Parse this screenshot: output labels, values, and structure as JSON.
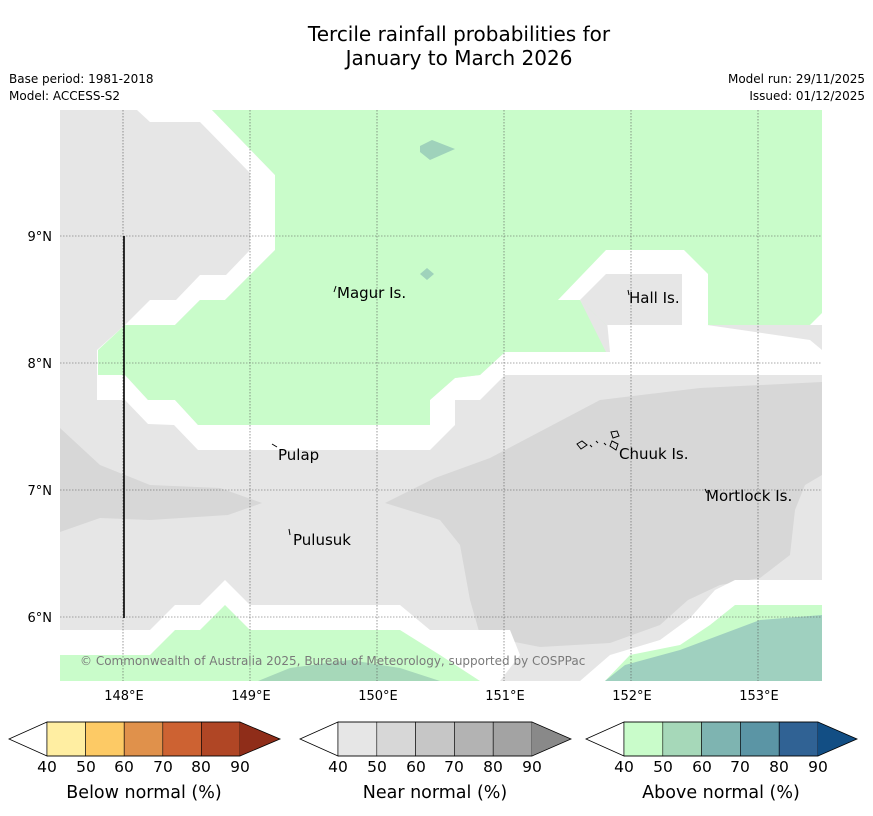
{
  "title": {
    "line1": "Tercile rainfall probabilities for",
    "line2": "January to March 2026"
  },
  "base_period": "Base period: 1981-2018",
  "model": "Model: ACCESS-S2",
  "model_run": "Model run: 29/11/2025",
  "issued": "Issued: 01/12/2025",
  "map": {
    "longitude_labels": [
      "148°E",
      "149°E",
      "150°E",
      "151°E",
      "152°E",
      "153°E"
    ],
    "latitude_labels": [
      "9°N",
      "8°N",
      "7°N",
      "6°N"
    ],
    "places": {
      "magur": "Magur Is.",
      "hall": "Hall Is.",
      "pulap": "Pulap",
      "chuuk": "Chuuk Is.",
      "mortlock": "Mortlock Is.",
      "pulusuk": "Pulusuk"
    },
    "copyright": "© Commonwealth of Australia 2025, Bureau of Meteorology, supported by COSPPac"
  },
  "legends": {
    "below": {
      "title": "Below normal (%)",
      "ticks": [
        "40",
        "50",
        "60",
        "70",
        "80",
        "90"
      ],
      "colors": [
        "#ffeea2",
        "#fdca65",
        "#e0914b",
        "#cd6232",
        "#b04625",
        "#8f2d19"
      ]
    },
    "near": {
      "title": "Near normal (%)",
      "ticks": [
        "40",
        "50",
        "60",
        "70",
        "80",
        "90"
      ],
      "colors": [
        "#e6e6e6",
        "#d7d7d7",
        "#c6c6c6",
        "#b3b3b3",
        "#a3a3a3",
        "#898989"
      ]
    },
    "above": {
      "title": "Above normal (%)",
      "ticks": [
        "40",
        "50",
        "60",
        "70",
        "80",
        "90"
      ],
      "colors": [
        "#c9fcca",
        "#a6d8b9",
        "#7eb4b1",
        "#5b95a5",
        "#306294",
        "#124e84"
      ]
    }
  }
}
